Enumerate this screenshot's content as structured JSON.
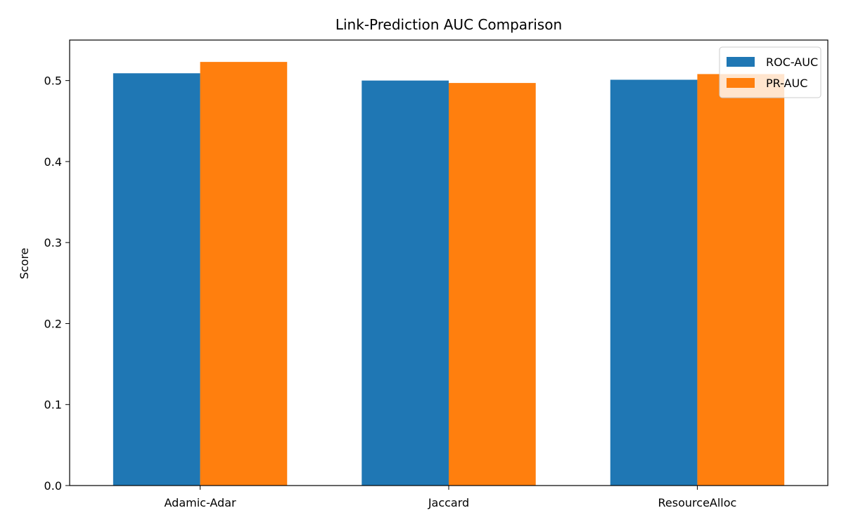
{
  "chart_data": {
    "type": "bar",
    "title": "Link-Prediction AUC Comparison",
    "xlabel": "",
    "ylabel": "Score",
    "categories": [
      "Adamic-Adar",
      "Jaccard",
      "ResourceAlloc"
    ],
    "series": [
      {
        "name": "ROC-AUC",
        "color": "#1f77b4",
        "values": [
          0.509,
          0.5,
          0.501
        ]
      },
      {
        "name": "PR-AUC",
        "color": "#ff7f0e",
        "values": [
          0.523,
          0.497,
          0.508
        ]
      }
    ],
    "ylim": [
      0,
      0.55
    ],
    "yticks": [
      0.0,
      0.1,
      0.2,
      0.3,
      0.4,
      0.5
    ],
    "ytick_labels": [
      "0.0",
      "0.1",
      "0.2",
      "0.3",
      "0.4",
      "0.5"
    ],
    "grid": false,
    "legend_position": "top-right"
  }
}
